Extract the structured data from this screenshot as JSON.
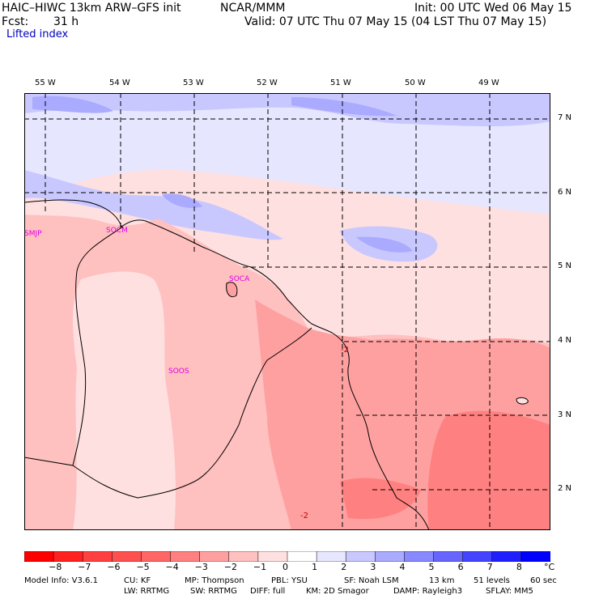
{
  "header": {
    "left_line1": "HAIC–HIWC 13km ARW–GFS init",
    "left_org": "NCAR/MMM",
    "fcst_label": "Fcst:",
    "fcst_value": "31 h",
    "init": "Init: 00 UTC Wed 06 May 15",
    "valid": "Valid: 07 UTC Thu 07 May 15 (04 LST Thu 07 May 15)",
    "field": "Lifted index"
  },
  "map": {
    "lon_labels": [
      "55 W",
      "54 W",
      "53 W",
      "52 W",
      "51 W",
      "50 W",
      "49 W"
    ],
    "lat_labels": [
      "7 N",
      "6 N",
      "5 N",
      "4 N",
      "3 N",
      "2 N"
    ],
    "stations": [
      "SMJP",
      "SOCM",
      "SOCA",
      "SOOS"
    ],
    "contour_labels": [
      "-2",
      "-2"
    ]
  },
  "colorbar": {
    "ticks": [
      "−8",
      "−7",
      "−6",
      "−5",
      "−4",
      "−3",
      "−2",
      "−1",
      "0",
      "1",
      "2",
      "3",
      "4",
      "5",
      "6",
      "7",
      "8"
    ],
    "unit": "°C",
    "colors": [
      "#ff0000",
      "#ff2020",
      "#ff4040",
      "#ff5050",
      "#ff6666",
      "#ff8080",
      "#ffa0a0",
      "#ffc0c0",
      "#ffe0e0",
      "#ffffff",
      "#e6e6ff",
      "#c8c8ff",
      "#aaaaff",
      "#8888ff",
      "#6666ff",
      "#4444ff",
      "#2020ff",
      "#0000ff"
    ]
  },
  "model_info": {
    "line1": [
      "Model Info: V3.6.1",
      "CU: KF",
      "MP: Thompson",
      "PBL: YSU",
      "SF: Noah LSM",
      "13 km",
      "51 levels",
      "60 sec"
    ],
    "line2": [
      "LW: RRTMG",
      "SW: RRTMG",
      "DIFF: full",
      "KM: 2D Smagor",
      "DAMP: Rayleigh3",
      "SFLAY: MM5"
    ]
  }
}
